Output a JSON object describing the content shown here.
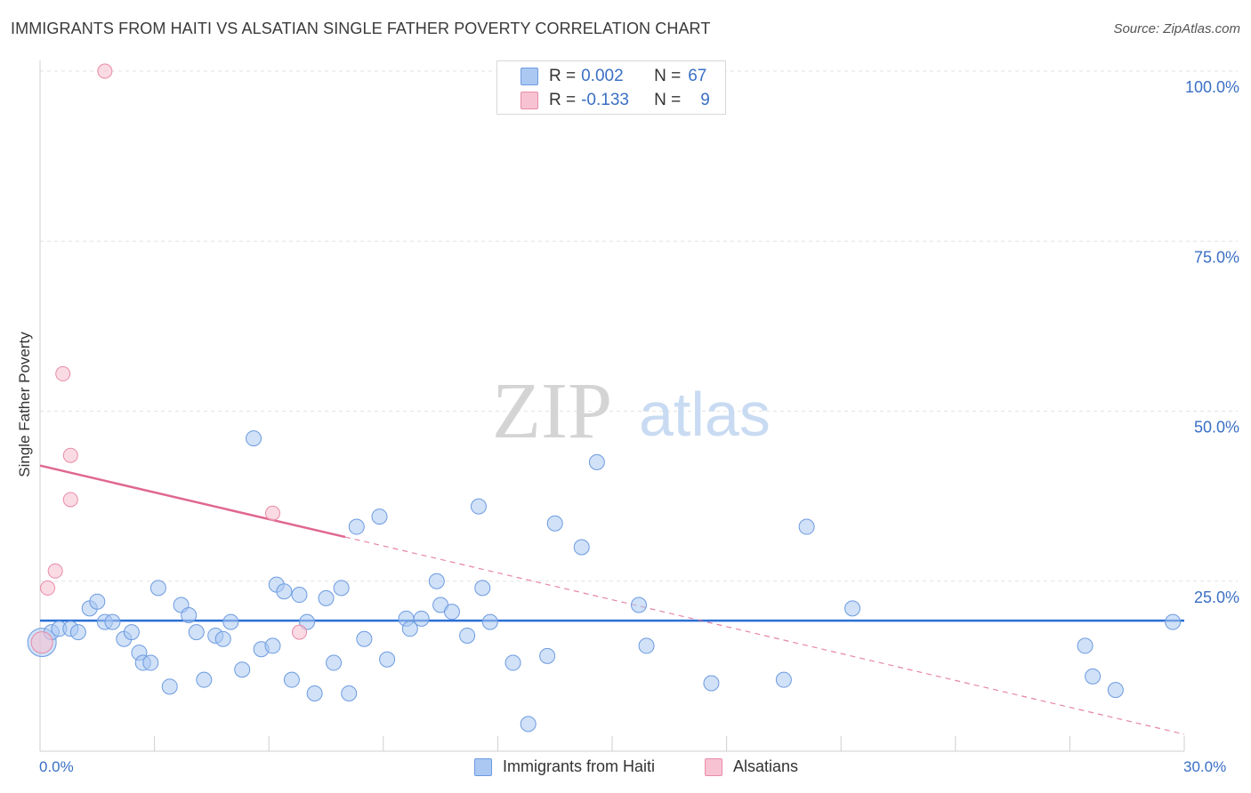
{
  "title": "IMMIGRANTS FROM HAITI VS ALSATIAN SINGLE FATHER POVERTY CORRELATION CHART",
  "source": "Source: ZipAtlas.com",
  "watermark": {
    "zip": "ZIP",
    "atlas": "atlas"
  },
  "legend": {
    "rows": [
      {
        "r_label": "R =",
        "r_value": "0.002",
        "n_label": "N =",
        "n_value": "67",
        "color": "#aac8f2",
        "border": "#6d9be0"
      },
      {
        "r_label": "R =",
        "r_value": "-0.133",
        "n_label": "N =",
        "n_value": "9",
        "color": "#f7c3d2",
        "border": "#e88ba8"
      }
    ]
  },
  "bottom_legend": {
    "items": [
      {
        "label": "Immigrants from Haiti",
        "color": "#aac8f2",
        "border": "#6d9be0"
      },
      {
        "label": "Alsatians",
        "color": "#f7c3d2",
        "border": "#e88ba8"
      }
    ]
  },
  "chart_data": {
    "type": "scatter",
    "title": "IMMIGRANTS FROM HAITI VS ALSATIAN SINGLE FATHER POVERTY CORRELATION CHART",
    "xlabel": "",
    "ylabel": "Single Father Poverty",
    "xlim": [
      0,
      30
    ],
    "ylim": [
      0,
      100
    ],
    "x_tick_labels": [
      "0.0%",
      "30.0%"
    ],
    "y_tick_labels": [
      "25.0%",
      "50.0%",
      "75.0%",
      "100.0%"
    ],
    "y_ticks": [
      25,
      50,
      75,
      100
    ],
    "colors": {
      "haiti_fill": "#aac8f2",
      "haiti_stroke": "#6d9be0",
      "haiti_line": "#2a6fd4",
      "als_fill": "#f7c3d2",
      "als_stroke": "#e88ba8",
      "als_line": "#e0678f",
      "tick_label": "#3a6fc4"
    },
    "series": [
      {
        "name": "Immigrants from Haiti",
        "points": [
          [
            0.05,
            16
          ],
          [
            0.3,
            17.5
          ],
          [
            0.5,
            18
          ],
          [
            0.8,
            18
          ],
          [
            1.0,
            17.5
          ],
          [
            1.3,
            21
          ],
          [
            1.5,
            22
          ],
          [
            1.7,
            19
          ],
          [
            1.9,
            19
          ],
          [
            2.2,
            16.5
          ],
          [
            2.4,
            17.5
          ],
          [
            2.6,
            14.5
          ],
          [
            2.7,
            13
          ],
          [
            2.9,
            13
          ],
          [
            3.1,
            24
          ],
          [
            3.4,
            9.5
          ],
          [
            3.7,
            21.5
          ],
          [
            3.9,
            20
          ],
          [
            4.1,
            17.5
          ],
          [
            4.3,
            10.5
          ],
          [
            4.6,
            17
          ],
          [
            4.8,
            16.5
          ],
          [
            5.0,
            19
          ],
          [
            5.3,
            12
          ],
          [
            5.6,
            46
          ],
          [
            5.8,
            15
          ],
          [
            6.1,
            15.5
          ],
          [
            6.2,
            24.5
          ],
          [
            6.4,
            23.5
          ],
          [
            6.6,
            10.5
          ],
          [
            6.8,
            23
          ],
          [
            7.0,
            19
          ],
          [
            7.2,
            8.5
          ],
          [
            7.5,
            22.5
          ],
          [
            7.7,
            13
          ],
          [
            7.9,
            24
          ],
          [
            8.1,
            8.5
          ],
          [
            8.3,
            33
          ],
          [
            8.5,
            16.5
          ],
          [
            8.9,
            34.5
          ],
          [
            9.1,
            13.5
          ],
          [
            9.6,
            19.5
          ],
          [
            9.7,
            18
          ],
          [
            10.0,
            19.5
          ],
          [
            10.4,
            25
          ],
          [
            10.5,
            21.5
          ],
          [
            10.8,
            20.5
          ],
          [
            11.2,
            17
          ],
          [
            11.5,
            36
          ],
          [
            11.6,
            24
          ],
          [
            11.8,
            19
          ],
          [
            12.4,
            13
          ],
          [
            12.8,
            4
          ],
          [
            13.3,
            14
          ],
          [
            13.5,
            33.5
          ],
          [
            14.2,
            30
          ],
          [
            14.6,
            42.5
          ],
          [
            15.7,
            21.5
          ],
          [
            15.9,
            15.5
          ],
          [
            17.6,
            10
          ],
          [
            19.5,
            10.5
          ],
          [
            20.1,
            33
          ],
          [
            21.3,
            21
          ],
          [
            27.4,
            15.5
          ],
          [
            27.6,
            11
          ],
          [
            28.2,
            9
          ],
          [
            29.7,
            19
          ]
        ],
        "trend": [
          [
            0,
            19.2
          ],
          [
            30,
            19.2
          ]
        ]
      },
      {
        "name": "Alsatians",
        "points": [
          [
            0.05,
            16
          ],
          [
            0.2,
            24
          ],
          [
            0.4,
            26.5
          ],
          [
            0.6,
            55.5
          ],
          [
            0.8,
            43.5
          ],
          [
            0.8,
            37
          ],
          [
            1.7,
            100
          ],
          [
            6.1,
            35
          ],
          [
            6.8,
            17.5
          ]
        ],
        "trend_solid": [
          [
            0,
            42
          ],
          [
            8,
            31.5
          ]
        ],
        "trend_dashed": [
          [
            8,
            31.5
          ],
          [
            30,
            2.5
          ]
        ]
      }
    ]
  }
}
